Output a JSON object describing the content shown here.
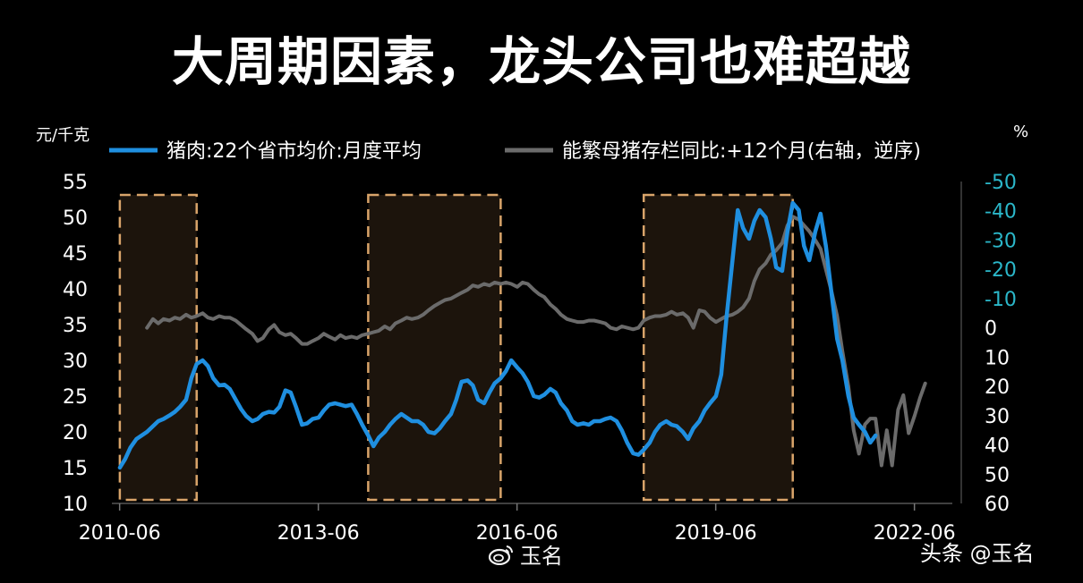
{
  "title": "大周期因素，龙头公司也难超越",
  "watermarks": {
    "center": "玉名",
    "right": "头条 @玉名",
    "center_icon": "weibo-logo-icon"
  },
  "chart_data": {
    "type": "line",
    "left_unit": "元/千克",
    "right_unit": "%",
    "left_axis": {
      "min": 10,
      "max": 55,
      "ticks": [
        10,
        15,
        20,
        25,
        30,
        35,
        40,
        45,
        50,
        55
      ]
    },
    "right_axis": {
      "min": -50,
      "max": 60,
      "reversed": true,
      "ticks": [
        "-50",
        "-40",
        "-30",
        "-20",
        "-10",
        "0",
        "10",
        "20",
        "30",
        "40",
        "50",
        "60"
      ],
      "tick_values": [
        -50,
        -40,
        -30,
        -20,
        -10,
        0,
        10,
        20,
        30,
        40,
        50,
        60
      ]
    },
    "x_tick_labels": [
      "2010-06",
      "2013-06",
      "2016-06",
      "2019-06",
      "2022-06"
    ],
    "x_tick_values": [
      2010.417,
      2013.417,
      2016.417,
      2019.417,
      2022.417
    ],
    "x_range": [
      2010.3,
      2022.8
    ],
    "colors": {
      "price": "#1f8fe0",
      "sow": "#6b6b6b",
      "right_ticks": "#2bb7c9",
      "box": "#d9a46a",
      "box_fill": "#1c140c"
    },
    "highlight_periods": [
      [
        2010.42,
        2011.58
      ],
      [
        2014.17,
        2016.17
      ],
      [
        2018.33,
        2020.58
      ]
    ],
    "series": [
      {
        "name": "猪肉:22个省市均价:月度平均",
        "axis": "left",
        "points": [
          [
            2010.42,
            15.0
          ],
          [
            2010.5,
            16.2
          ],
          [
            2010.58,
            17.8
          ],
          [
            2010.67,
            19.0
          ],
          [
            2010.75,
            19.5
          ],
          [
            2010.83,
            20.0
          ],
          [
            2010.92,
            20.8
          ],
          [
            2011.0,
            21.5
          ],
          [
            2011.08,
            21.8
          ],
          [
            2011.17,
            22.3
          ],
          [
            2011.25,
            22.8
          ],
          [
            2011.33,
            23.5
          ],
          [
            2011.42,
            24.5
          ],
          [
            2011.5,
            27.5
          ],
          [
            2011.58,
            29.5
          ],
          [
            2011.67,
            30.0
          ],
          [
            2011.75,
            29.2
          ],
          [
            2011.83,
            27.5
          ],
          [
            2011.92,
            26.5
          ],
          [
            2012.0,
            26.6
          ],
          [
            2012.08,
            26.0
          ],
          [
            2012.17,
            24.5
          ],
          [
            2012.25,
            23.2
          ],
          [
            2012.33,
            22.2
          ],
          [
            2012.42,
            21.5
          ],
          [
            2012.5,
            21.8
          ],
          [
            2012.58,
            22.5
          ],
          [
            2012.67,
            22.8
          ],
          [
            2012.75,
            22.7
          ],
          [
            2012.83,
            23.5
          ],
          [
            2012.92,
            25.8
          ],
          [
            2013.0,
            25.5
          ],
          [
            2013.08,
            23.5
          ],
          [
            2013.17,
            21.0
          ],
          [
            2013.25,
            21.2
          ],
          [
            2013.33,
            21.8
          ],
          [
            2013.42,
            22.0
          ],
          [
            2013.5,
            23.0
          ],
          [
            2013.58,
            23.8
          ],
          [
            2013.67,
            24.0
          ],
          [
            2013.75,
            23.8
          ],
          [
            2013.83,
            23.6
          ],
          [
            2013.92,
            23.8
          ],
          [
            2014.0,
            22.5
          ],
          [
            2014.08,
            21.0
          ],
          [
            2014.17,
            19.5
          ],
          [
            2014.25,
            18.0
          ],
          [
            2014.33,
            19.2
          ],
          [
            2014.42,
            20.0
          ],
          [
            2014.5,
            21.0
          ],
          [
            2014.58,
            21.8
          ],
          [
            2014.67,
            22.5
          ],
          [
            2014.75,
            22.0
          ],
          [
            2014.83,
            21.5
          ],
          [
            2014.92,
            21.5
          ],
          [
            2015.0,
            21.0
          ],
          [
            2015.08,
            20.0
          ],
          [
            2015.17,
            19.8
          ],
          [
            2015.25,
            20.5
          ],
          [
            2015.33,
            21.5
          ],
          [
            2015.42,
            22.5
          ],
          [
            2015.5,
            24.5
          ],
          [
            2015.58,
            27.0
          ],
          [
            2015.67,
            27.2
          ],
          [
            2015.75,
            26.5
          ],
          [
            2015.83,
            24.5
          ],
          [
            2015.92,
            24.0
          ],
          [
            2016.0,
            25.5
          ],
          [
            2016.08,
            26.8
          ],
          [
            2016.17,
            27.5
          ],
          [
            2016.25,
            28.5
          ],
          [
            2016.33,
            30.0
          ],
          [
            2016.42,
            29.0
          ],
          [
            2016.5,
            28.2
          ],
          [
            2016.58,
            27.0
          ],
          [
            2016.67,
            25.0
          ],
          [
            2016.75,
            24.8
          ],
          [
            2016.83,
            25.2
          ],
          [
            2016.92,
            26.0
          ],
          [
            2017.0,
            25.5
          ],
          [
            2017.08,
            24.0
          ],
          [
            2017.17,
            23.0
          ],
          [
            2017.25,
            21.5
          ],
          [
            2017.33,
            21.0
          ],
          [
            2017.42,
            21.2
          ],
          [
            2017.5,
            21.0
          ],
          [
            2017.58,
            21.5
          ],
          [
            2017.67,
            21.5
          ],
          [
            2017.75,
            21.8
          ],
          [
            2017.83,
            22.0
          ],
          [
            2017.92,
            21.5
          ],
          [
            2018.0,
            20.2
          ],
          [
            2018.08,
            18.5
          ],
          [
            2018.17,
            17.0
          ],
          [
            2018.25,
            16.8
          ],
          [
            2018.33,
            17.5
          ],
          [
            2018.42,
            18.5
          ],
          [
            2018.5,
            20.0
          ],
          [
            2018.58,
            21.0
          ],
          [
            2018.67,
            21.5
          ],
          [
            2018.75,
            21.0
          ],
          [
            2018.83,
            20.8
          ],
          [
            2018.92,
            20.0
          ],
          [
            2019.0,
            19.0
          ],
          [
            2019.08,
            20.5
          ],
          [
            2019.17,
            21.5
          ],
          [
            2019.25,
            23.0
          ],
          [
            2019.33,
            24.0
          ],
          [
            2019.42,
            25.0
          ],
          [
            2019.5,
            28.0
          ],
          [
            2019.58,
            36.0
          ],
          [
            2019.67,
            44.0
          ],
          [
            2019.75,
            51.0
          ],
          [
            2019.83,
            48.5
          ],
          [
            2019.92,
            47.0
          ],
          [
            2020.0,
            49.5
          ],
          [
            2020.08,
            51.0
          ],
          [
            2020.17,
            50.0
          ],
          [
            2020.25,
            47.0
          ],
          [
            2020.33,
            43.0
          ],
          [
            2020.42,
            42.5
          ],
          [
            2020.5,
            48.0
          ],
          [
            2020.58,
            52.0
          ],
          [
            2020.67,
            51.0
          ],
          [
            2020.75,
            46.0
          ],
          [
            2020.83,
            44.0
          ],
          [
            2020.92,
            48.0
          ],
          [
            2021.0,
            50.5
          ],
          [
            2021.08,
            46.0
          ],
          [
            2021.17,
            39.0
          ],
          [
            2021.25,
            33.0
          ],
          [
            2021.33,
            30.0
          ],
          [
            2021.42,
            25.0
          ],
          [
            2021.5,
            22.0
          ],
          [
            2021.58,
            21.0
          ],
          [
            2021.67,
            20.0
          ],
          [
            2021.75,
            18.5
          ],
          [
            2021.83,
            19.5
          ]
        ]
      },
      {
        "name": "能繁母猪存栏同比:+12个月(右轴，逆序)",
        "axis": "right",
        "points": [
          [
            2010.83,
            0.0
          ],
          [
            2010.92,
            -3.0
          ],
          [
            2011.0,
            -1.5
          ],
          [
            2011.08,
            -3.0
          ],
          [
            2011.17,
            -2.5
          ],
          [
            2011.25,
            -3.5
          ],
          [
            2011.33,
            -3.0
          ],
          [
            2011.42,
            -4.5
          ],
          [
            2011.5,
            -3.5
          ],
          [
            2011.58,
            -4.0
          ],
          [
            2011.67,
            -5.0
          ],
          [
            2011.75,
            -3.5
          ],
          [
            2011.83,
            -3.0
          ],
          [
            2011.92,
            -4.0
          ],
          [
            2012.0,
            -3.5
          ],
          [
            2012.08,
            -3.5
          ],
          [
            2012.17,
            -2.5
          ],
          [
            2012.25,
            -1.0
          ],
          [
            2012.33,
            0.5
          ],
          [
            2012.42,
            2.0
          ],
          [
            2012.5,
            4.5
          ],
          [
            2012.58,
            3.5
          ],
          [
            2012.67,
            0.5
          ],
          [
            2012.75,
            -1.0
          ],
          [
            2012.83,
            1.5
          ],
          [
            2012.92,
            2.5
          ],
          [
            2013.0,
            2.0
          ],
          [
            2013.08,
            3.5
          ],
          [
            2013.17,
            5.5
          ],
          [
            2013.25,
            5.5
          ],
          [
            2013.33,
            4.5
          ],
          [
            2013.42,
            3.5
          ],
          [
            2013.5,
            2.0
          ],
          [
            2013.58,
            3.0
          ],
          [
            2013.67,
            4.0
          ],
          [
            2013.75,
            2.5
          ],
          [
            2013.83,
            3.5
          ],
          [
            2013.92,
            3.0
          ],
          [
            2014.0,
            3.5
          ],
          [
            2014.08,
            2.5
          ],
          [
            2014.17,
            2.0
          ],
          [
            2014.25,
            1.5
          ],
          [
            2014.33,
            1.0
          ],
          [
            2014.42,
            -0.5
          ],
          [
            2014.5,
            0.5
          ],
          [
            2014.58,
            -1.5
          ],
          [
            2014.67,
            -2.5
          ],
          [
            2014.75,
            -3.5
          ],
          [
            2014.83,
            -3.0
          ],
          [
            2014.92,
            -3.5
          ],
          [
            2015.0,
            -4.5
          ],
          [
            2015.08,
            -6.0
          ],
          [
            2015.17,
            -7.5
          ],
          [
            2015.25,
            -8.5
          ],
          [
            2015.33,
            -9.5
          ],
          [
            2015.42,
            -10.0
          ],
          [
            2015.5,
            -11.0
          ],
          [
            2015.58,
            -12.0
          ],
          [
            2015.67,
            -13.0
          ],
          [
            2015.75,
            -14.5
          ],
          [
            2015.83,
            -14.0
          ],
          [
            2015.92,
            -15.0
          ],
          [
            2016.0,
            -14.5
          ],
          [
            2016.08,
            -15.5
          ],
          [
            2016.17,
            -15.0
          ],
          [
            2016.25,
            -15.5
          ],
          [
            2016.33,
            -15.0
          ],
          [
            2016.42,
            -14.0
          ],
          [
            2016.5,
            -15.5
          ],
          [
            2016.58,
            -15.0
          ],
          [
            2016.67,
            -13.0
          ],
          [
            2016.75,
            -11.5
          ],
          [
            2016.83,
            -10.5
          ],
          [
            2016.92,
            -8.0
          ],
          [
            2017.0,
            -6.5
          ],
          [
            2017.08,
            -4.5
          ],
          [
            2017.17,
            -3.0
          ],
          [
            2017.25,
            -2.5
          ],
          [
            2017.33,
            -2.0
          ],
          [
            2017.42,
            -2.0
          ],
          [
            2017.5,
            -2.5
          ],
          [
            2017.58,
            -2.5
          ],
          [
            2017.67,
            -2.0
          ],
          [
            2017.75,
            -1.5
          ],
          [
            2017.83,
            0.0
          ],
          [
            2017.92,
            0.5
          ],
          [
            2018.0,
            -0.5
          ],
          [
            2018.08,
            0.0
          ],
          [
            2018.17,
            0.5
          ],
          [
            2018.25,
            0.0
          ],
          [
            2018.33,
            -2.5
          ],
          [
            2018.42,
            -3.5
          ],
          [
            2018.5,
            -4.0
          ],
          [
            2018.58,
            -4.0
          ],
          [
            2018.67,
            -4.5
          ],
          [
            2018.75,
            -5.5
          ],
          [
            2018.83,
            -4.5
          ],
          [
            2018.92,
            -5.0
          ],
          [
            2019.0,
            -3.5
          ],
          [
            2019.08,
            0.0
          ],
          [
            2019.17,
            -6.0
          ],
          [
            2019.25,
            -5.5
          ],
          [
            2019.33,
            -3.5
          ],
          [
            2019.42,
            -2.0
          ],
          [
            2019.5,
            -3.0
          ],
          [
            2019.58,
            -4.0
          ],
          [
            2019.67,
            -4.5
          ],
          [
            2019.75,
            -5.5
          ],
          [
            2019.83,
            -7.0
          ],
          [
            2019.92,
            -10.0
          ],
          [
            2020.0,
            -16.0
          ],
          [
            2020.08,
            -20.0
          ],
          [
            2020.17,
            -22.0
          ],
          [
            2020.25,
            -25.0
          ],
          [
            2020.33,
            -26.5
          ],
          [
            2020.42,
            -29.0
          ],
          [
            2020.5,
            -35.0
          ],
          [
            2020.58,
            -38.0
          ],
          [
            2020.67,
            -37.0
          ],
          [
            2020.75,
            -35.0
          ],
          [
            2020.83,
            -33.0
          ],
          [
            2020.92,
            -30.0
          ],
          [
            2021.0,
            -27.0
          ],
          [
            2021.08,
            -20.0
          ],
          [
            2021.17,
            -12.0
          ],
          [
            2021.25,
            -4.0
          ],
          [
            2021.33,
            8.0
          ],
          [
            2021.42,
            20.0
          ],
          [
            2021.5,
            35.0
          ],
          [
            2021.58,
            43.0
          ],
          [
            2021.67,
            33.0
          ],
          [
            2021.75,
            31.0
          ],
          [
            2021.83,
            31.0
          ],
          [
            2021.92,
            47.0
          ],
          [
            2022.0,
            35.0
          ],
          [
            2022.08,
            47.0
          ],
          [
            2022.17,
            28.0
          ],
          [
            2022.25,
            23.0
          ],
          [
            2022.33,
            36.0
          ],
          [
            2022.42,
            30.0
          ],
          [
            2022.5,
            24.0
          ],
          [
            2022.58,
            19.0
          ]
        ]
      }
    ]
  }
}
